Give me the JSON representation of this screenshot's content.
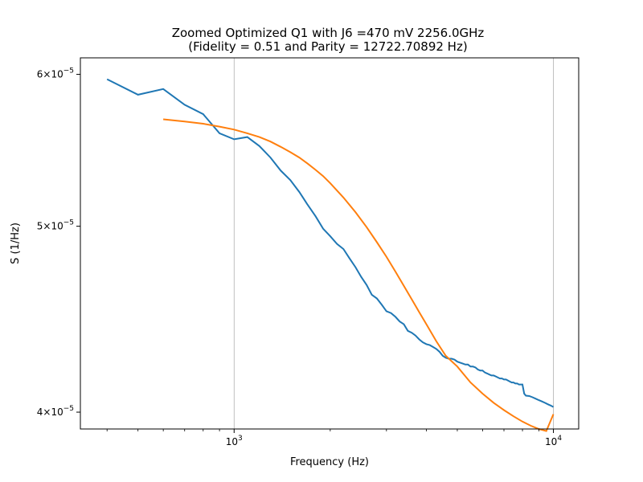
{
  "chart_data": {
    "type": "line",
    "title_line1": "Zoomed Optimized Q1 with J6 =470 mV 2256.0GHz",
    "title_line2": "(Fidelity = 0.51 and Parity = 12722.70892 Hz)",
    "xlabel": "Frequency (Hz)",
    "ylabel": "S (1/Hz)",
    "x_scale": "log",
    "y_scale": "log",
    "xlim": [
      330,
      12000
    ],
    "ylim": [
      3.92e-05,
      6.12e-05
    ],
    "grid": "vertical lines at major x ticks",
    "x_ticks": [
      {
        "value": 1000,
        "base": "10",
        "exp": "3"
      },
      {
        "value": 10000,
        "base": "10",
        "exp": "4"
      }
    ],
    "y_ticks": [
      {
        "value": 6e-05,
        "mant": "6",
        "base": "10",
        "exp": "−5"
      },
      {
        "value": 5e-05,
        "mant": "5",
        "base": "10",
        "exp": "−5"
      },
      {
        "value": 4e-05,
        "mant": "4",
        "base": "10",
        "exp": "−5"
      }
    ],
    "series": [
      {
        "color": "#1f77b4",
        "x": [
          400,
          500,
          600,
          700,
          800,
          900,
          1000,
          1100,
          1200,
          1300,
          1400,
          1500,
          1600,
          1700,
          1800,
          1900,
          2000,
          2100,
          2200,
          2300,
          2400,
          2500,
          2600,
          2700,
          2800,
          2900,
          3000,
          3100,
          3200,
          3300,
          3400,
          3500,
          3600,
          3700,
          3800,
          3900,
          4000,
          4100,
          4200,
          4300,
          4400,
          4500,
          4600,
          4700,
          4800,
          4900,
          5000,
          5100,
          5200,
          5300,
          5400,
          5500,
          5600,
          5700,
          5800,
          5900,
          6000,
          6100,
          6200,
          6300,
          6400,
          6500,
          6600,
          6700,
          6800,
          6900,
          7000,
          7100,
          7200,
          7300,
          7400,
          7500,
          7600,
          7700,
          7800,
          7900,
          8000,
          8100,
          8200,
          8400,
          8600,
          8800,
          9000,
          9200,
          9400,
          9600,
          9800,
          10000
        ],
        "values": [
          5.965e-05,
          5.855e-05,
          5.895e-05,
          5.785e-05,
          5.72e-05,
          5.59e-05,
          5.55e-05,
          5.565e-05,
          5.505e-05,
          5.43e-05,
          5.345e-05,
          5.285e-05,
          5.21e-05,
          5.13e-05,
          5.06e-05,
          4.985e-05,
          4.94e-05,
          4.895e-05,
          4.865e-05,
          4.81e-05,
          4.76e-05,
          4.705e-05,
          4.66e-05,
          4.605e-05,
          4.585e-05,
          4.55e-05,
          4.515e-05,
          4.505e-05,
          4.485e-05,
          4.46e-05,
          4.445e-05,
          4.41e-05,
          4.4e-05,
          4.385e-05,
          4.365e-05,
          4.35e-05,
          4.34e-05,
          4.335e-05,
          4.325e-05,
          4.315e-05,
          4.3e-05,
          4.28e-05,
          4.27e-05,
          4.265e-05,
          4.265e-05,
          4.26e-05,
          4.25e-05,
          4.245e-05,
          4.24e-05,
          4.235e-05,
          4.235e-05,
          4.225e-05,
          4.225e-05,
          4.22e-05,
          4.21e-05,
          4.205e-05,
          4.205e-05,
          4.195e-05,
          4.19e-05,
          4.185e-05,
          4.18e-05,
          4.18e-05,
          4.175e-05,
          4.17e-05,
          4.165e-05,
          4.165e-05,
          4.16e-05,
          4.16e-05,
          4.155e-05,
          4.15e-05,
          4.145e-05,
          4.145e-05,
          4.14e-05,
          4.14e-05,
          4.135e-05,
          4.135e-05,
          4.135e-05,
          4.09e-05,
          4.08e-05,
          4.078e-05,
          4.072e-05,
          4.065e-05,
          4.058e-05,
          4.052e-05,
          4.045e-05,
          4.038e-05,
          4.032e-05,
          4.025e-05
        ]
      },
      {
        "color": "#ff7f0e",
        "x": [
          600,
          700,
          800,
          900,
          1000,
          1100,
          1200,
          1300,
          1400,
          1500,
          1600,
          1700,
          1800,
          1900,
          2000,
          2200,
          2400,
          2600,
          2800,
          3000,
          3200,
          3400,
          3600,
          3800,
          4000,
          4300,
          4600,
          5000,
          5500,
          6000,
          6500,
          7000,
          7500,
          8000,
          8500,
          9000,
          9500,
          10000
        ],
        "values": [
          5.685e-05,
          5.67e-05,
          5.655e-05,
          5.635e-05,
          5.615e-05,
          5.59e-05,
          5.565e-05,
          5.535e-05,
          5.5e-05,
          5.465e-05,
          5.43e-05,
          5.39e-05,
          5.35e-05,
          5.31e-05,
          5.265e-05,
          5.175e-05,
          5.085e-05,
          4.995e-05,
          4.905e-05,
          4.82e-05,
          4.735e-05,
          4.655e-05,
          4.58e-05,
          4.51e-05,
          4.445e-05,
          4.355e-05,
          4.28e-05,
          4.225e-05,
          4.145e-05,
          4.09e-05,
          4.045e-05,
          4.01e-05,
          3.98e-05,
          3.955e-05,
          3.935e-05,
          3.92e-05,
          3.91e-05,
          3.99e-05
        ]
      }
    ]
  }
}
